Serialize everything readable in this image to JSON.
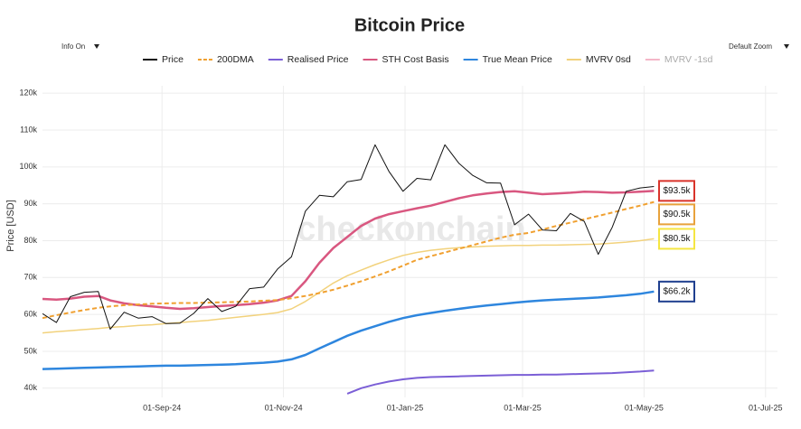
{
  "chart_data": {
    "type": "line",
    "title": "Bitcoin Price",
    "info_toggle": "Info On",
    "zoom_toggle": "Default Zoom",
    "watermark": "checkonchain",
    "y_label": "Price [USD]",
    "grid": true,
    "xlim": [
      "2024-07-03",
      "2025-07-07"
    ],
    "ylim": [
      37500,
      122000
    ],
    "xticks": [
      {
        "value": "2024-09-01",
        "label": "01-Sep-24"
      },
      {
        "value": "2024-11-01",
        "label": "01-Nov-24"
      },
      {
        "value": "2025-01-01",
        "label": "01-Jan-25"
      },
      {
        "value": "2025-03-01",
        "label": "01-Mar-25"
      },
      {
        "value": "2025-05-01",
        "label": "01-May-25"
      },
      {
        "value": "2025-07-01",
        "label": "01-Jul-25"
      }
    ],
    "yticks": [
      {
        "value": 40000,
        "label": "40k"
      },
      {
        "value": 50000,
        "label": "50k"
      },
      {
        "value": 60000,
        "label": "60k"
      },
      {
        "value": 70000,
        "label": "70k"
      },
      {
        "value": 80000,
        "label": "80k"
      },
      {
        "value": 90000,
        "label": "90k"
      },
      {
        "value": 100000,
        "label": "100k"
      },
      {
        "value": 110000,
        "label": "110k"
      },
      {
        "value": 120000,
        "label": "120k"
      }
    ],
    "x": [
      "2024-07-03",
      "2024-07-10",
      "2024-07-17",
      "2024-07-24",
      "2024-07-31",
      "2024-08-06",
      "2024-08-13",
      "2024-08-20",
      "2024-08-27",
      "2024-09-03",
      "2024-09-10",
      "2024-09-17",
      "2024-09-24",
      "2024-10-01",
      "2024-10-08",
      "2024-10-15",
      "2024-10-22",
      "2024-10-29",
      "2024-11-05",
      "2024-11-12",
      "2024-11-19",
      "2024-11-26",
      "2024-12-03",
      "2024-12-10",
      "2024-12-17",
      "2024-12-24",
      "2024-12-31",
      "2025-01-07",
      "2025-01-14",
      "2025-01-21",
      "2025-01-28",
      "2025-02-04",
      "2025-02-11",
      "2025-02-18",
      "2025-02-25",
      "2025-03-04",
      "2025-03-11",
      "2025-03-18",
      "2025-03-25",
      "2025-04-01",
      "2025-04-08",
      "2025-04-15",
      "2025-04-22",
      "2025-04-29",
      "2025-05-06"
    ],
    "series": [
      {
        "name": "Price",
        "color": "#111111",
        "width": 1,
        "values": [
          60200,
          57800,
          64800,
          66000,
          66200,
          56000,
          60600,
          59000,
          59400,
          57500,
          57600,
          60300,
          64300,
          60800,
          62200,
          67000,
          67400,
          72300,
          75600,
          88000,
          92300,
          91900,
          96000,
          96600,
          106000,
          98700,
          93400,
          96900,
          96500,
          106000,
          101000,
          97700,
          95700,
          95600,
          84300,
          87200,
          82900,
          82700,
          87400,
          85200,
          76300,
          83600,
          93400,
          94300,
          94700
        ]
      },
      {
        "name": "200DMA",
        "color": "#f0a030",
        "width": 2,
        "dashed": true,
        "label_color": "#e8a23c",
        "values": [
          59000,
          59800,
          60500,
          61200,
          61800,
          62200,
          62500,
          62700,
          62900,
          63000,
          63100,
          63100,
          63200,
          63300,
          63400,
          63500,
          63700,
          63900,
          64400,
          65000,
          65800,
          66700,
          67800,
          69000,
          70300,
          71700,
          73200,
          74800,
          75800,
          76800,
          77800,
          78800,
          79800,
          80800,
          81600,
          82100,
          83000,
          84000,
          84900,
          85800,
          86700,
          87600,
          88600,
          89500,
          90500
        ],
        "value_labels": [
          null,
          null,
          null,
          null,
          null,
          null,
          null,
          null,
          null,
          null,
          null,
          null,
          null,
          null,
          null,
          null,
          null,
          null,
          null,
          null,
          null,
          null,
          null,
          null,
          null,
          null,
          null,
          null,
          null,
          null,
          null,
          null,
          null,
          null,
          null,
          null,
          null,
          null,
          null,
          null,
          null,
          null,
          null,
          null,
          "$90.5k"
        ]
      },
      {
        "name": "Realised Price",
        "color": "#7b5fd6",
        "width": 2,
        "values": [
          null,
          null,
          null,
          null,
          null,
          null,
          null,
          null,
          null,
          null,
          null,
          null,
          null,
          null,
          null,
          null,
          null,
          null,
          null,
          null,
          null,
          null,
          38500,
          40000,
          41000,
          41800,
          42400,
          42800,
          43000,
          43100,
          43200,
          43300,
          43400,
          43500,
          43600,
          43600,
          43700,
          43700,
          43800,
          43900,
          44000,
          44100,
          44300,
          44500,
          44800
        ]
      },
      {
        "name": "STH Cost Basis",
        "color": "#d95780",
        "width": 2.5,
        "label_color": "#d9342b",
        "values": [
          64200,
          64000,
          64300,
          64800,
          65000,
          63800,
          63000,
          62500,
          62200,
          61800,
          61500,
          61700,
          62000,
          62300,
          62500,
          62800,
          63200,
          63800,
          65000,
          69000,
          74000,
          78000,
          81000,
          84000,
          86000,
          87200,
          88000,
          88800,
          89500,
          90500,
          91500,
          92300,
          92800,
          93200,
          93400,
          93000,
          92600,
          92800,
          93000,
          93300,
          93200,
          93000,
          93100,
          93300,
          93500
        ],
        "value_labels": [
          null,
          null,
          null,
          null,
          null,
          null,
          null,
          null,
          null,
          null,
          null,
          null,
          null,
          null,
          null,
          null,
          null,
          null,
          null,
          null,
          null,
          null,
          null,
          null,
          null,
          null,
          null,
          null,
          null,
          null,
          null,
          null,
          null,
          null,
          null,
          null,
          null,
          null,
          null,
          null,
          null,
          null,
          null,
          null,
          "$93.5k"
        ]
      },
      {
        "name": "True Mean Price",
        "color": "#2e86de",
        "width": 2.5,
        "label_color": "#1f3f8f",
        "values": [
          45200,
          45300,
          45400,
          45500,
          45600,
          45700,
          45800,
          45900,
          46000,
          46100,
          46100,
          46200,
          46300,
          46400,
          46500,
          46700,
          46900,
          47200,
          47800,
          49000,
          50800,
          52500,
          54200,
          55600,
          56800,
          58000,
          59000,
          59800,
          60400,
          61000,
          61500,
          62000,
          62400,
          62800,
          63200,
          63500,
          63800,
          64000,
          64200,
          64400,
          64600,
          64900,
          65200,
          65600,
          66200
        ],
        "value_labels": [
          null,
          null,
          null,
          null,
          null,
          null,
          null,
          null,
          null,
          null,
          null,
          null,
          null,
          null,
          null,
          null,
          null,
          null,
          null,
          null,
          null,
          null,
          null,
          null,
          null,
          null,
          null,
          null,
          null,
          null,
          null,
          null,
          null,
          null,
          null,
          null,
          null,
          null,
          null,
          null,
          null,
          null,
          null,
          null,
          "$66.2k"
        ]
      },
      {
        "name": "MVRV 0sd",
        "color": "#f2d27c",
        "width": 1.5,
        "label_color": "#f5e642",
        "values": [
          55000,
          55300,
          55600,
          55900,
          56200,
          56500,
          56700,
          57000,
          57200,
          57500,
          57800,
          58100,
          58400,
          58800,
          59200,
          59600,
          60000,
          60500,
          61500,
          63500,
          66000,
          68500,
          70500,
          72000,
          73500,
          74800,
          76000,
          76800,
          77400,
          77800,
          78100,
          78300,
          78500,
          78600,
          78700,
          78700,
          78800,
          78800,
          78900,
          79000,
          79100,
          79300,
          79600,
          80000,
          80500
        ],
        "value_labels": [
          null,
          null,
          null,
          null,
          null,
          null,
          null,
          null,
          null,
          null,
          null,
          null,
          null,
          null,
          null,
          null,
          null,
          null,
          null,
          null,
          null,
          null,
          null,
          null,
          null,
          null,
          null,
          null,
          null,
          null,
          null,
          null,
          null,
          null,
          null,
          null,
          null,
          null,
          null,
          null,
          null,
          null,
          null,
          null,
          "$80.5k"
        ]
      },
      {
        "name": "MVRV -1sd",
        "color": "#f4b6c8",
        "width": 1.5,
        "visible": false,
        "values": [
          null,
          null,
          null,
          null,
          null,
          null,
          null,
          null,
          null,
          null,
          null,
          null,
          null,
          null,
          null,
          null,
          null,
          null,
          null,
          null,
          null,
          null,
          null,
          null,
          null,
          null,
          null,
          null,
          null,
          null,
          null,
          null,
          null,
          null,
          null,
          null,
          null,
          null,
          null,
          null,
          null,
          null,
          null,
          null,
          null
        ]
      }
    ]
  }
}
